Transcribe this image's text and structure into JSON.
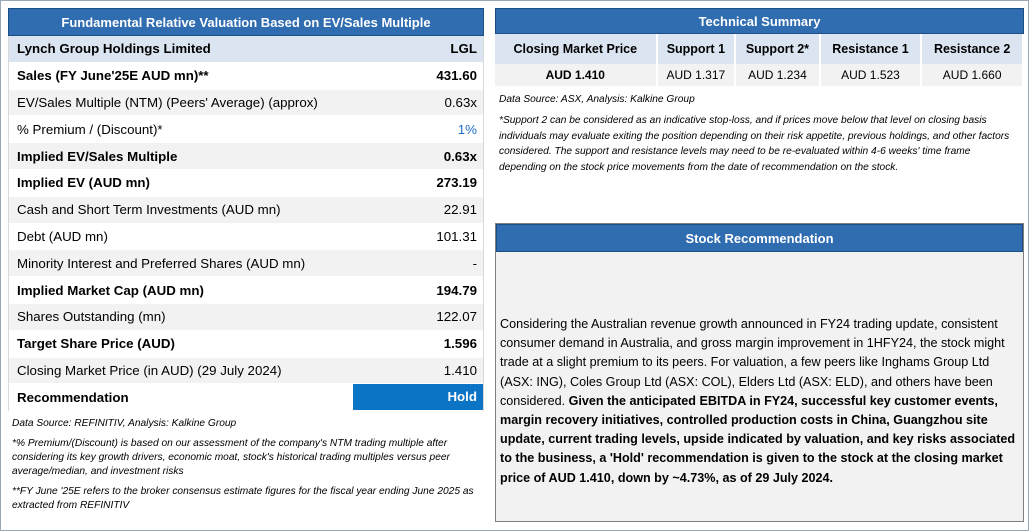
{
  "valuation": {
    "title": "Fundamental Relative Valuation Based on EV/Sales Multiple",
    "company": "Lynch Group Holdings Limited",
    "ticker": "LGL",
    "rows": [
      {
        "label": "Sales (FY June'25E AUD mn)**",
        "value": "431.60"
      },
      {
        "label": "EV/Sales Multiple (NTM)  (Peers' Average) (approx)",
        "value": "0.63x"
      },
      {
        "label": "% Premium / (Discount)*",
        "value": "1%"
      },
      {
        "label": "Implied EV/Sales Multiple",
        "value": "0.63x"
      },
      {
        "label": "Implied EV (AUD mn)",
        "value": "273.19"
      },
      {
        "label": "Cash and Short Term Investments (AUD mn)",
        "value": "22.91"
      },
      {
        "label": "Debt (AUD mn)",
        "value": "101.31"
      },
      {
        "label": "Minority Interest and Preferred Shares (AUD mn)",
        "value": "-"
      },
      {
        "label": "Implied Market Cap (AUD mn)",
        "value": "194.79"
      },
      {
        "label": "Shares Outstanding (mn)",
        "value": "122.07"
      },
      {
        "label": "Target Share Price (AUD)",
        "value": "1.596"
      },
      {
        "label": "Closing Market Price (in AUD) (29 July 2024)",
        "value": "1.410"
      },
      {
        "label": "Recommendation",
        "value": "Hold"
      }
    ],
    "source": "Data Source: REFINITIV, Analysis: Kalkine Group",
    "note1": "*% Premium/(Discount) is based on our assessment of the company's NTM trading multiple after considering its key growth drivers, economic moat, stock's historical trading multiples versus peer average/median, and investment risks",
    "note2": "**FY June '25E refers to the broker consensus estimate figures for the fiscal year ending June 2025  as extracted from REFINITIV"
  },
  "technical": {
    "title": "Technical Summary",
    "headers": [
      "Closing Market Price",
      "Support 1",
      "Support 2*",
      "Resistance 1",
      "Resistance 2"
    ],
    "values": [
      "AUD 1.410",
      "AUD 1.317",
      "AUD 1.234",
      "AUD 1.523",
      "AUD 1.660"
    ],
    "source": "Data Source: ASX, Analysis: Kalkine Group",
    "note": "*Support 2 can be considered as an indicative stop-loss, and if prices move below that level on closing basis individuals may evaluate exiting the position depending on their risk appetite, previous holdings, and other factors considered. The support and resistance levels may need to be re-evaluated within 4-6 weeks' time frame depending on the stock price movements from the date of recommendation on the stock."
  },
  "recommendation": {
    "title": "Stock Recommendation",
    "text_regular": "Considering the Australian revenue growth announced in FY24 trading update, consistent consumer demand in Australia, and gross margin improvement in 1HFY24, the stock might trade at a slight premium to its peers. For valuation, a few peers like Inghams Group Ltd (ASX: ING), Coles Group Ltd (ASX: COL), Elders Ltd (ASX: ELD), and others have been considered. ",
    "text_bold": "Given the anticipated EBITDA in FY24, successful key customer events, margin recovery initiatives, controlled production costs in China, Guangzhou site update, current trading levels, upside indicated by valuation, and key risks associated to the business, a 'Hold' recommendation is given to the stock at the closing market price of AUD 1.410, down by ~4.73%, as of 29 July 2024."
  }
}
